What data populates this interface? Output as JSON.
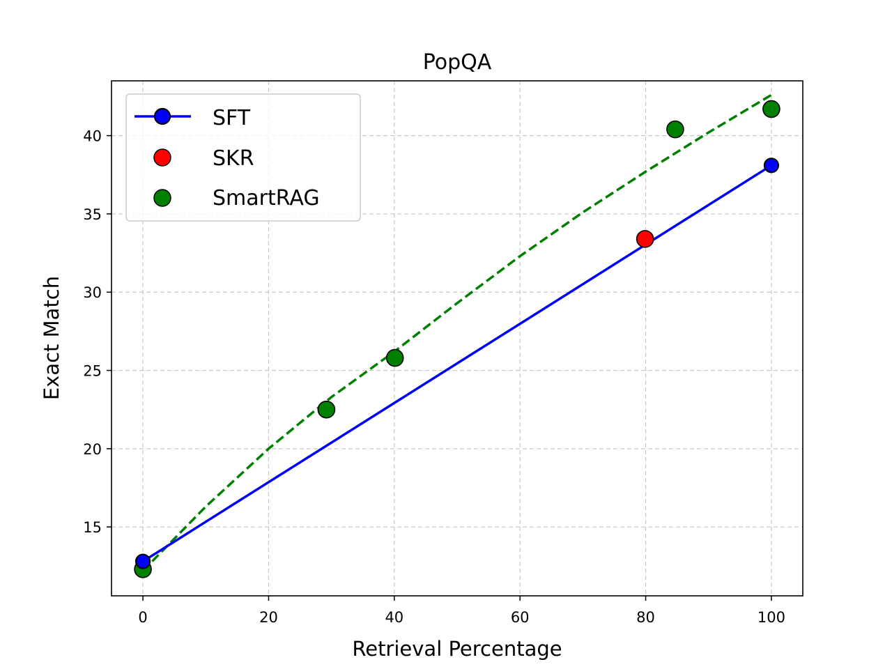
{
  "chart_data": {
    "type": "scatter",
    "title": "PopQA",
    "xlabel": "Retrieval Percentage",
    "ylabel": "Exact Match",
    "xlim": [
      -5,
      105
    ],
    "ylim": [
      10.6,
      43.5
    ],
    "xticks": [
      0,
      20,
      40,
      60,
      80,
      100
    ],
    "yticks": [
      15,
      20,
      25,
      30,
      35,
      40
    ],
    "grid": true,
    "legend_position": "top-left",
    "series": [
      {
        "name": "SFT",
        "kind": "line-marker",
        "color": "#0000ff",
        "marker_edge": "#000000",
        "points": [
          [
            0,
            12.8
          ],
          [
            100,
            38.1
          ]
        ]
      },
      {
        "name": "SKR",
        "kind": "marker",
        "color": "#ff0000",
        "marker_edge": "#000000",
        "points": [
          [
            79.9,
            33.4
          ]
        ]
      },
      {
        "name": "SmartRAG",
        "kind": "marker",
        "color": "#008000",
        "marker_edge": "#000000",
        "points": [
          [
            0,
            12.3
          ],
          [
            29.2,
            22.5
          ],
          [
            40.1,
            25.8
          ],
          [
            84.7,
            40.4
          ],
          [
            100,
            41.7
          ]
        ]
      }
    ],
    "fit_curve": {
      "series": "SmartRAG",
      "style": "dashed",
      "color": "#008000",
      "points": [
        [
          0,
          12.2
        ],
        [
          10,
          16.3
        ],
        [
          20,
          20.0
        ],
        [
          30,
          23.3
        ],
        [
          40,
          26.2
        ],
        [
          50,
          29.3
        ],
        [
          60,
          32.3
        ],
        [
          70,
          35.1
        ],
        [
          80,
          37.7
        ],
        [
          90,
          40.2
        ],
        [
          100,
          42.6
        ]
      ]
    }
  }
}
